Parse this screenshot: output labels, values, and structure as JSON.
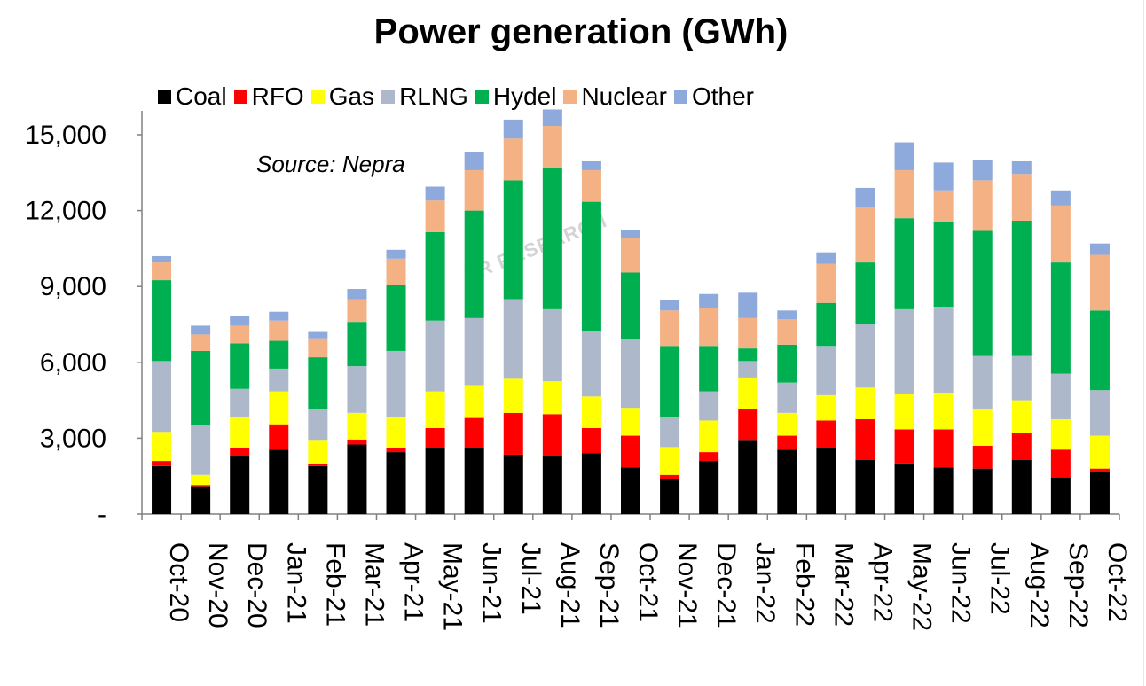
{
  "chart_data": {
    "type": "bar",
    "stacked": true,
    "title": "Power generation (GWh)",
    "source_note": "Source: Nepra",
    "watermark": "PR RESEARCH",
    "categories": [
      "Oct-20",
      "Nov-20",
      "Dec-20",
      "Jan-21",
      "Feb-21",
      "Mar-21",
      "Apr-21",
      "May-21",
      "Jun-21",
      "Jul-21",
      "Aug-21",
      "Sep-21",
      "Oct-21",
      "Nov-21",
      "Dec-21",
      "Jan-22",
      "Feb-22",
      "Mar-22",
      "Apr-22",
      "May-22",
      "Jun-22",
      "Jul-22",
      "Aug-22",
      "Sep-22",
      "Oct-22"
    ],
    "ylim": [
      0,
      16000
    ],
    "yticks": [
      0,
      3000,
      6000,
      9000,
      12000,
      15000
    ],
    "ytick_labels": [
      "-",
      "3,000",
      "6,000",
      "9,000",
      "12,000",
      "15,000"
    ],
    "legend_position": "top",
    "grid": false,
    "series": [
      {
        "name": "Coal",
        "color": "#000000",
        "values": [
          1900,
          1100,
          2300,
          2550,
          1900,
          2750,
          2450,
          2600,
          2600,
          2350,
          2300,
          2400,
          1850,
          1400,
          2100,
          2900,
          2550,
          2600,
          2150,
          2000,
          1850,
          1800,
          2150,
          1450,
          1650
        ]
      },
      {
        "name": "RFO",
        "color": "#ff0000",
        "values": [
          200,
          50,
          300,
          1000,
          100,
          200,
          150,
          800,
          1200,
          1650,
          1650,
          1000,
          1250,
          150,
          350,
          1250,
          550,
          1100,
          1600,
          1350,
          1500,
          900,
          1050,
          1100,
          150
        ]
      },
      {
        "name": "Gas",
        "color": "#ffff00",
        "values": [
          1150,
          400,
          1250,
          1300,
          900,
          1050,
          1250,
          1450,
          1300,
          1350,
          1300,
          1250,
          1100,
          1100,
          1250,
          1250,
          900,
          1000,
          1250,
          1400,
          1450,
          1450,
          1300,
          1200,
          1300
        ]
      },
      {
        "name": "RLNG",
        "color": "#adb9ca",
        "values": [
          2800,
          1950,
          1100,
          900,
          1250,
          1850,
          2600,
          2800,
          2650,
          3150,
          2850,
          2600,
          2700,
          1200,
          1150,
          650,
          1200,
          1950,
          2500,
          3350,
          3400,
          2100,
          1750,
          1800,
          1800
        ]
      },
      {
        "name": "Hydel",
        "color": "#00b050",
        "values": [
          3200,
          2950,
          1800,
          1100,
          2050,
          1750,
          2600,
          3500,
          4250,
          4700,
          5600,
          5100,
          2650,
          2800,
          1800,
          500,
          1500,
          1700,
          2450,
          3600,
          3350,
          4950,
          5350,
          4400,
          3150
        ]
      },
      {
        "name": "Nuclear",
        "color": "#f4b183",
        "values": [
          700,
          650,
          700,
          800,
          750,
          900,
          1050,
          1250,
          1600,
          1650,
          1650,
          1250,
          1350,
          1400,
          1500,
          1200,
          1000,
          1550,
          2200,
          1900,
          1250,
          2000,
          1850,
          2250,
          2200
        ]
      },
      {
        "name": "Other",
        "color": "#8ea9db",
        "values": [
          250,
          350,
          400,
          350,
          250,
          400,
          350,
          550,
          700,
          750,
          650,
          350,
          350,
          400,
          550,
          1000,
          350,
          450,
          750,
          1100,
          1100,
          800,
          500,
          600,
          450
        ]
      }
    ]
  }
}
